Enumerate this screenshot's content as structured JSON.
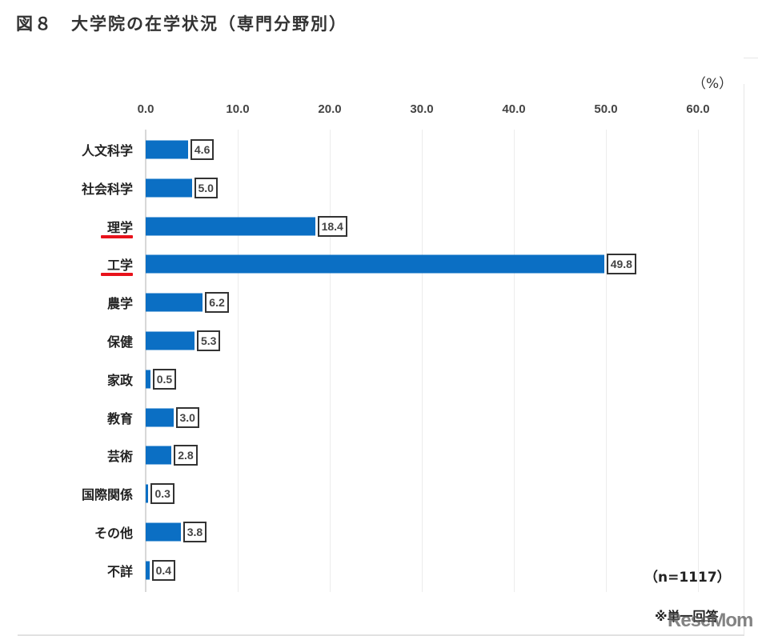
{
  "title": "図８　大学院の在学状況（専門分野別）",
  "unit_label": "（%）",
  "sample_note": "（n=1117）",
  "foot_note": "※単一回答",
  "watermark": "ReseMom",
  "colors": {
    "bar": "#0b6fc4",
    "highlight_underline": "#e8121b",
    "grid": "#ececec"
  },
  "axis": {
    "ticks": [
      "0.0",
      "10.0",
      "20.0",
      "30.0",
      "40.0",
      "50.0",
      "60.0"
    ]
  },
  "rows": [
    {
      "label": "人文科学",
      "value": "4.6"
    },
    {
      "label": "社会科学",
      "value": "5.0"
    },
    {
      "label": "理学",
      "value": "18.4",
      "highlight": true
    },
    {
      "label": "工学",
      "value": "49.8",
      "highlight": true
    },
    {
      "label": "農学",
      "value": "6.2"
    },
    {
      "label": "保健",
      "value": "5.3"
    },
    {
      "label": "家政",
      "value": "0.5"
    },
    {
      "label": "教育",
      "value": "3.0"
    },
    {
      "label": "芸術",
      "value": "2.8"
    },
    {
      "label": "国際関係",
      "value": "0.3"
    },
    {
      "label": "その他",
      "value": "3.8"
    },
    {
      "label": "不詳",
      "value": "0.4"
    }
  ],
  "chart_data": {
    "type": "bar",
    "orientation": "horizontal",
    "title": "図８　大学院の在学状況（専門分野別）",
    "categories": [
      "人文科学",
      "社会科学",
      "理学",
      "工学",
      "農学",
      "保健",
      "家政",
      "教育",
      "芸術",
      "国際関係",
      "その他",
      "不詳"
    ],
    "values": [
      4.6,
      5.0,
      18.4,
      49.8,
      6.2,
      5.3,
      0.5,
      3.0,
      2.8,
      0.3,
      3.8,
      0.4
    ],
    "xlabel": "（%）",
    "ylabel": "",
    "xlim": [
      0,
      60
    ],
    "xticks": [
      0,
      10,
      20,
      30,
      40,
      50,
      60
    ],
    "grid": true,
    "legend": null,
    "annotations": [
      "（n=1117）",
      "※単一回答"
    ],
    "highlighted_categories": [
      "理学",
      "工学"
    ],
    "data_labels": true
  }
}
